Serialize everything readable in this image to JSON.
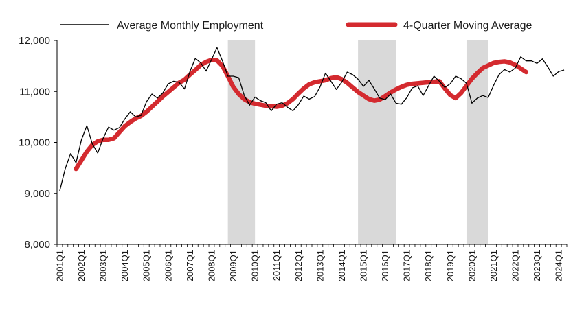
{
  "chart_data": {
    "type": "line",
    "title": "",
    "xlabel": "",
    "ylabel": "",
    "ylim": [
      8000,
      12000
    ],
    "yticks": [
      8000,
      9000,
      10000,
      11000,
      12000
    ],
    "ytick_labels": [
      "8,000",
      "9,000",
      "10,000",
      "11,000",
      "12,000"
    ],
    "grid": false,
    "legend_position": "top",
    "x_first_quarter": "2001Q1",
    "x_tick_labels": [
      "2001Q1",
      "2002Q1",
      "2003Q1",
      "2004Q1",
      "2005Q1",
      "2006Q1",
      "2007Q1",
      "2008Q1",
      "2009Q1",
      "2010Q1",
      "2011Q1",
      "2012Q1",
      "2013Q1",
      "2014Q1",
      "2015Q1",
      "2016Q1",
      "2017Q1",
      "2018Q1",
      "2019Q1",
      "2020Q1",
      "2021Q1",
      "2022Q1",
      "2023Q1",
      "2024Q1"
    ],
    "shaded_periods": [
      {
        "start": "2008Q4",
        "end": "2010Q1"
      },
      {
        "start": "2014Q4",
        "end": "2016Q3"
      },
      {
        "start": "2019Q4",
        "end": "2020Q4"
      }
    ],
    "series": [
      {
        "name": "Average Monthly Employment",
        "color": "#000000",
        "style": "thin",
        "values": [
          9050,
          9480,
          9780,
          9600,
          10050,
          10330,
          9970,
          9790,
          10080,
          10300,
          10240,
          10290,
          10460,
          10600,
          10500,
          10530,
          10800,
          10950,
          10870,
          10970,
          11150,
          11200,
          11180,
          11050,
          11390,
          11650,
          11560,
          11400,
          11630,
          11860,
          11600,
          11300,
          11300,
          11270,
          10930,
          10730,
          10890,
          10820,
          10780,
          10620,
          10750,
          10780,
          10690,
          10620,
          10740,
          10910,
          10850,
          10900,
          11090,
          11360,
          11200,
          11040,
          11180,
          11380,
          11330,
          11240,
          11100,
          11220,
          11050,
          10870,
          10840,
          10950,
          10770,
          10750,
          10880,
          11070,
          11110,
          10920,
          11110,
          11300,
          11200,
          11080,
          11150,
          11300,
          11250,
          11160,
          10770,
          10870,
          10920,
          10880,
          11120,
          11330,
          11430,
          11380,
          11460,
          11680,
          11600,
          11600,
          11550,
          11640,
          11480,
          11300,
          11390,
          11420
        ]
      },
      {
        "name": "4-Quarter Moving Average",
        "color": "#d42a2f",
        "style": "thick",
        "start_index": 3,
        "values": [
          9480,
          9650,
          9820,
          9950,
          10020,
          10050,
          10050,
          10080,
          10200,
          10320,
          10400,
          10470,
          10520,
          10600,
          10700,
          10800,
          10900,
          10990,
          11080,
          11170,
          11230,
          11330,
          11420,
          11520,
          11580,
          11620,
          11610,
          11500,
          11300,
          11090,
          10950,
          10850,
          10790,
          10760,
          10740,
          10720,
          10710,
          10700,
          10720,
          10770,
          10850,
          10960,
          11060,
          11140,
          11180,
          11200,
          11220,
          11260,
          11280,
          11240,
          11170,
          11080,
          10990,
          10920,
          10850,
          10820,
          10840,
          10910,
          10980,
          11040,
          11090,
          11130,
          11150,
          11160,
          11170,
          11180,
          11190,
          11200,
          11060,
          10930,
          10870,
          10970,
          11110,
          11250,
          11360,
          11460,
          11510,
          11560,
          11580,
          11590,
          11570,
          11520,
          11450,
          11380
        ]
      }
    ]
  }
}
